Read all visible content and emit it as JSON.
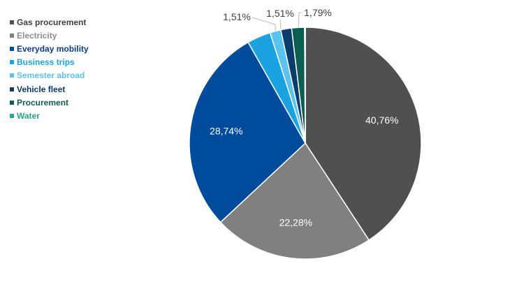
{
  "chart_data": {
    "type": "pie",
    "title": "",
    "legend_position": "left",
    "start_angle_deg": 0,
    "direction": "clockwise",
    "slices": [
      {
        "name": "Gas procurement",
        "value": 40.76,
        "label": "40,76%",
        "color": "#505050",
        "text_color": "#404040",
        "label_inside": true,
        "label_color": "#ffffff"
      },
      {
        "name": "Electricity",
        "value": 22.28,
        "label": "22,28%",
        "color": "#808080",
        "text_color": "#8c8c8c",
        "label_inside": true,
        "label_color": "#ffffff"
      },
      {
        "name": "Everyday mobility",
        "value": 28.74,
        "label": "28,74%",
        "color": "#004b9b",
        "text_color": "#0b3c8c",
        "label_inside": true,
        "label_color": "#ffffff"
      },
      {
        "name": "Business trips",
        "value": 3.3,
        "label": "",
        "color": "#1aa3e0",
        "text_color": "#1aa3e0",
        "label_inside": false
      },
      {
        "name": "Semester abroad",
        "value": 1.51,
        "label": "1,51%",
        "color": "#5cc3ee",
        "text_color": "#5cc3ee",
        "label_inside": false
      },
      {
        "name": "Vehicle fleet",
        "value": 1.51,
        "label": "1,51%",
        "color": "#0a3c6e",
        "text_color": "#0a3c6e",
        "label_inside": false
      },
      {
        "name": "Procurement",
        "value": 1.79,
        "label": "1,79%",
        "color": "#0b5e50",
        "text_color": "#0b5e50",
        "label_inside": false
      },
      {
        "name": "Water",
        "value": 0.1,
        "label": "",
        "color": "#2aa38f",
        "text_color": "#2aa38f",
        "label_inside": false
      }
    ]
  },
  "legend": {
    "items": [
      "Gas procurement",
      "Electricity",
      "Everyday mobility",
      "Business trips",
      "Semester abroad",
      "Vehicle fleet",
      "Procurement",
      "Water"
    ]
  }
}
